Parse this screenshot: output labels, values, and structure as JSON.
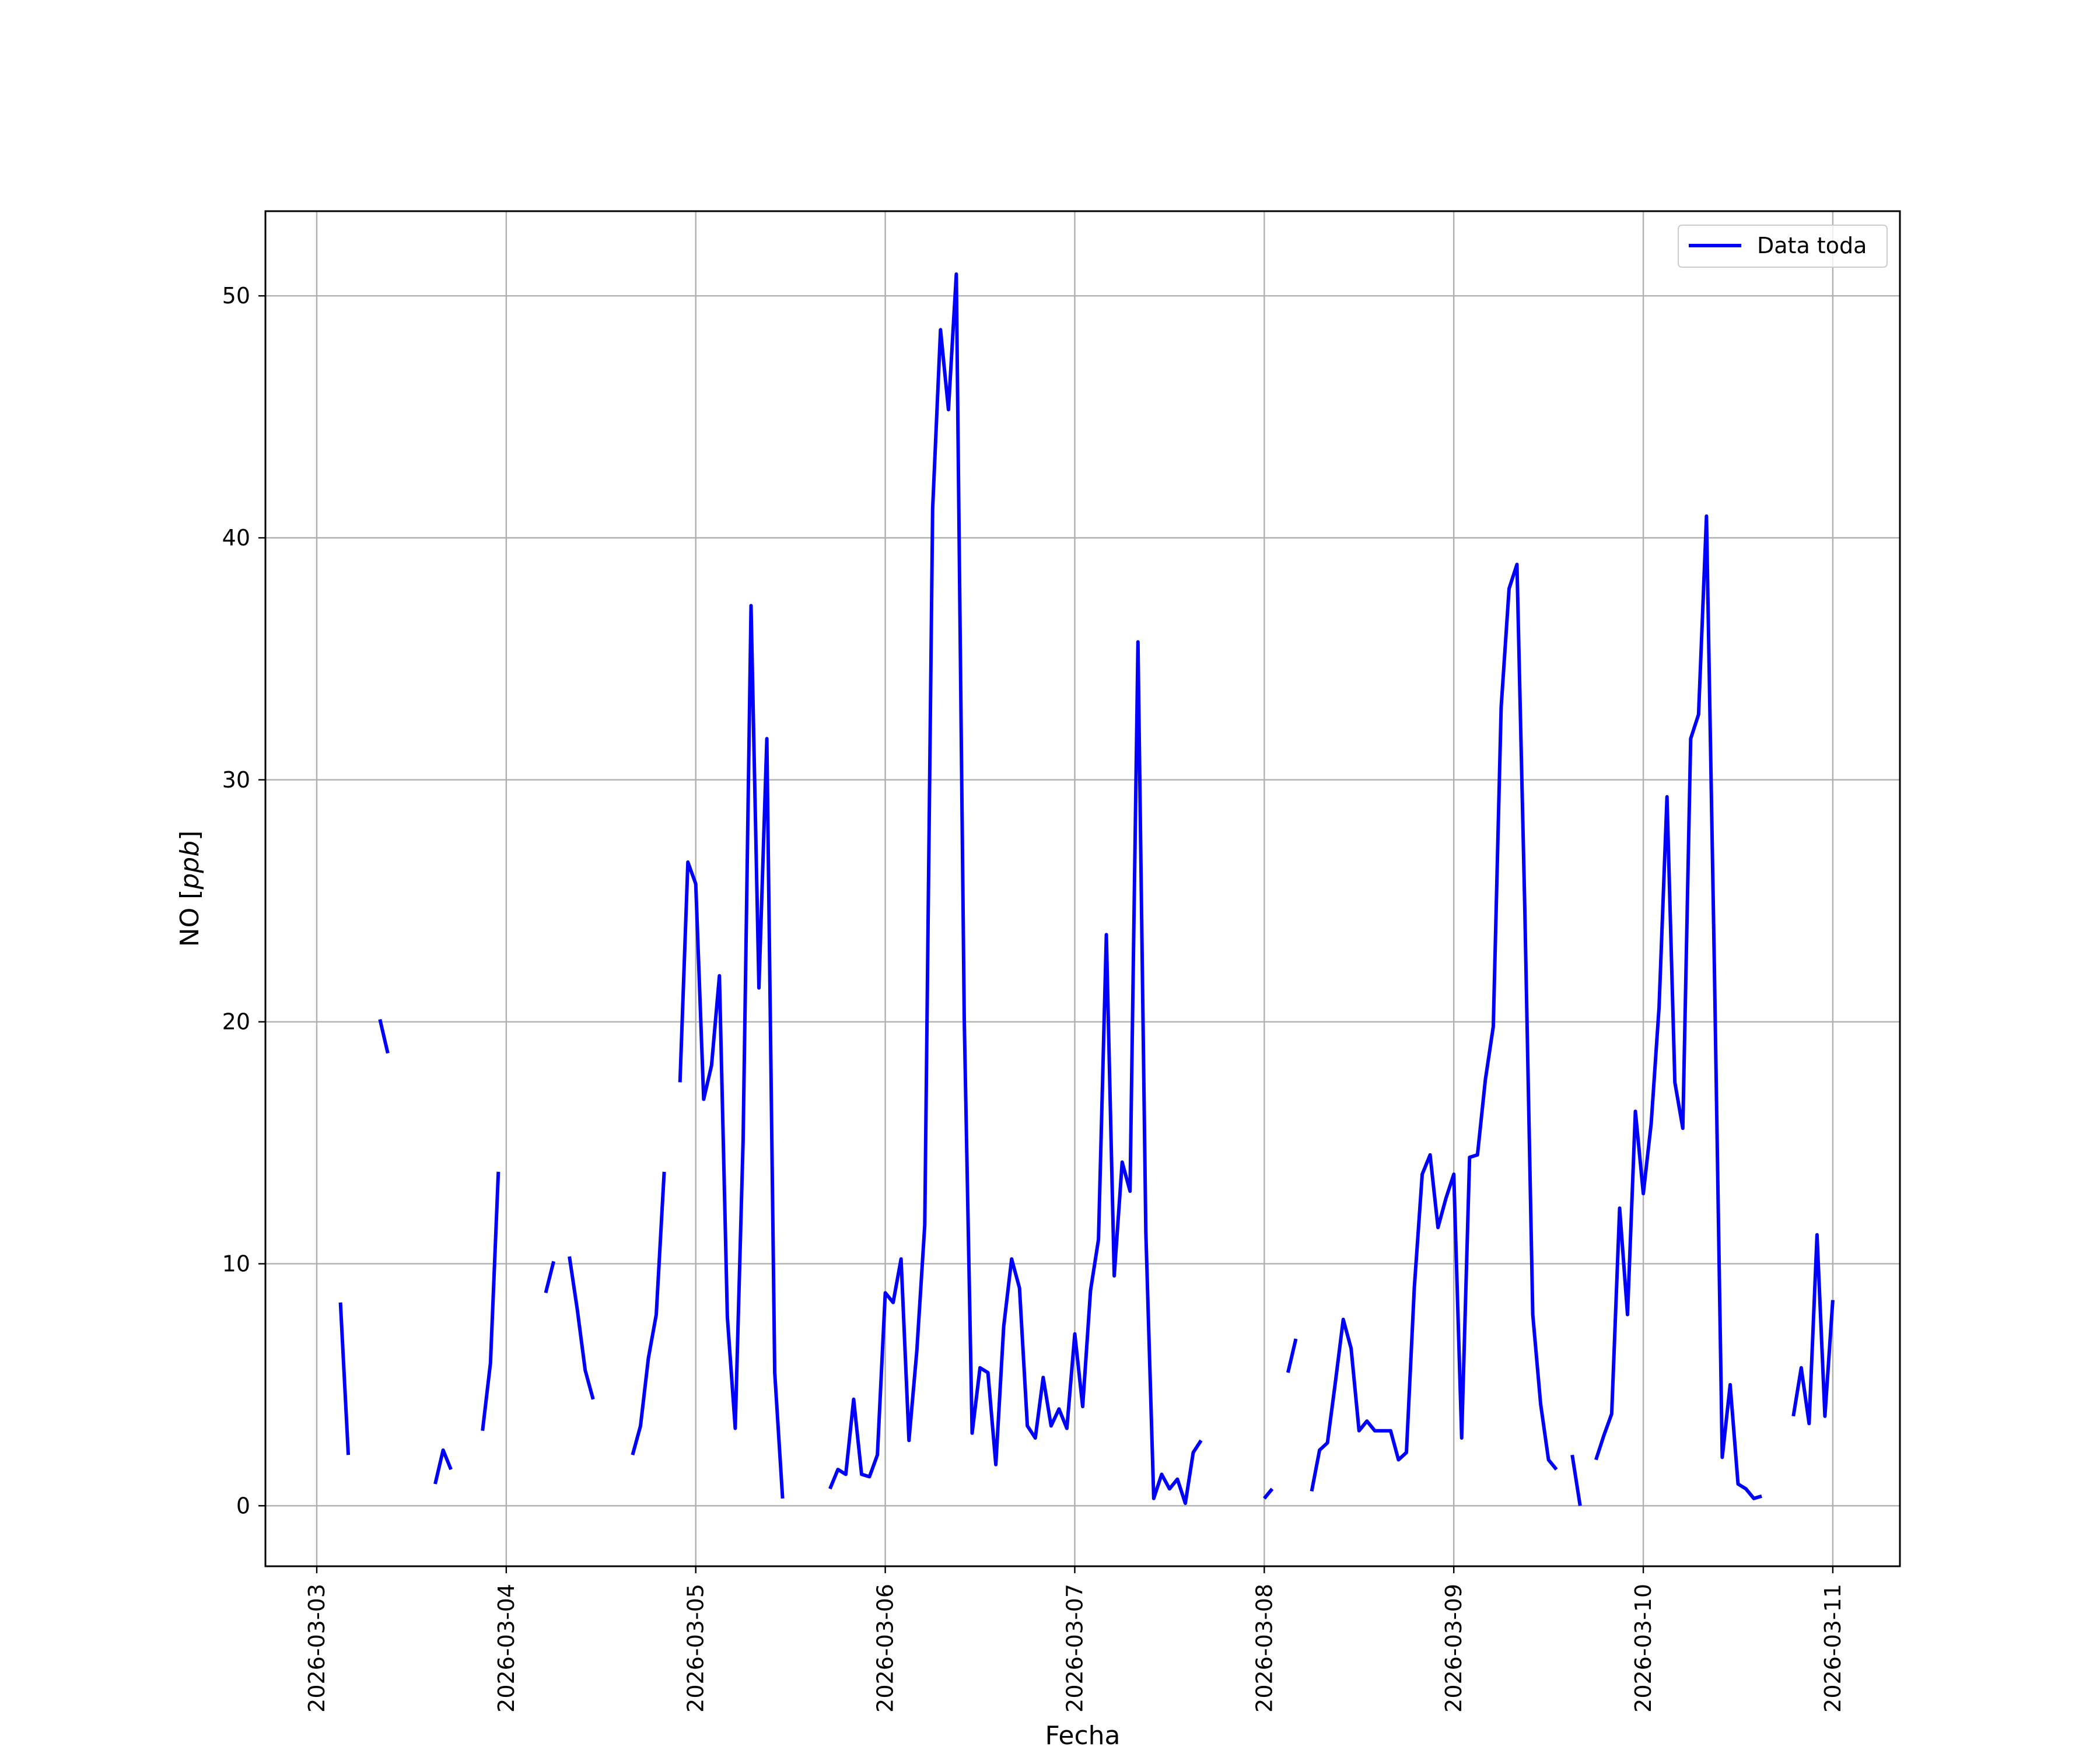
{
  "chart_data": {
    "type": "line",
    "title": "",
    "xlabel": "Fecha",
    "ylabel_text": "NO [",
    "ylabel_unit": "ppb",
    "ylabel_close": "]",
    "ylim": [
      -2.5,
      53.5
    ],
    "xlim": [
      "2026-03-02T17:30",
      "2026-03-11T08:30"
    ],
    "grid": true,
    "legend_position": "top-right",
    "yticks": [
      0,
      10,
      20,
      30,
      40,
      50
    ],
    "xticks": [
      "2026-03-03",
      "2026-03-04",
      "2026-03-05",
      "2026-03-06",
      "2026-03-07",
      "2026-03-08",
      "2026-03-09",
      "2026-03-10",
      "2026-03-11"
    ],
    "series": [
      {
        "name": "Data toda",
        "color": "#0000ff",
        "segments": [
          [
            [
              "2026-03-03T03:00",
              8.4
            ],
            [
              "2026-03-03T04:00",
              2.1
            ]
          ],
          [
            [
              "2026-03-03T08:00",
              20.1
            ],
            [
              "2026-03-03T09:00",
              18.7
            ]
          ],
          [
            [
              "2026-03-03T15:00",
              0.9
            ],
            [
              "2026-03-03T16:00",
              2.3
            ],
            [
              "2026-03-03T17:00",
              1.5
            ]
          ],
          [
            [
              "2026-03-03T21:00",
              3.1
            ],
            [
              "2026-03-03T22:00",
              5.9
            ],
            [
              "2026-03-03T23:00",
              13.8
            ]
          ],
          [
            [
              "2026-03-04T05:00",
              8.8
            ],
            [
              "2026-03-04T06:00",
              10.1
            ]
          ],
          [
            [
              "2026-03-04T08:00",
              10.3
            ],
            [
              "2026-03-04T09:00",
              8.1
            ],
            [
              "2026-03-04T10:00",
              5.6
            ],
            [
              "2026-03-04T11:00",
              4.4
            ]
          ],
          [
            [
              "2026-03-04T16:00",
              2.1
            ],
            [
              "2026-03-04T17:00",
              3.3
            ],
            [
              "2026-03-04T18:00",
              6.1
            ],
            [
              "2026-03-04T19:00",
              7.9
            ],
            [
              "2026-03-04T20:00",
              13.8
            ]
          ],
          [
            [
              "2026-03-04T22:00",
              17.5
            ],
            [
              "2026-03-04T23:00",
              26.6
            ],
            [
              "2026-03-05T00:00",
              25.7
            ],
            [
              "2026-03-05T01:00",
              16.8
            ],
            [
              "2026-03-05T02:00",
              18.2
            ],
            [
              "2026-03-05T03:00",
              21.9
            ],
            [
              "2026-03-05T04:00",
              7.8
            ],
            [
              "2026-03-05T05:00",
              3.2
            ],
            [
              "2026-03-05T06:00",
              15.1
            ],
            [
              "2026-03-05T07:00",
              37.2
            ],
            [
              "2026-03-05T08:00",
              21.4
            ],
            [
              "2026-03-05T09:00",
              31.7
            ],
            [
              "2026-03-05T10:00",
              5.5
            ],
            [
              "2026-03-05T11:00",
              0.3
            ]
          ],
          [
            [
              "2026-03-05T17:00",
              0.7
            ],
            [
              "2026-03-05T18:00",
              1.5
            ],
            [
              "2026-03-05T19:00",
              1.3
            ],
            [
              "2026-03-05T20:00",
              4.4
            ],
            [
              "2026-03-05T21:00",
              1.3
            ],
            [
              "2026-03-05T22:00",
              1.2
            ],
            [
              "2026-03-05T23:00",
              2.1
            ],
            [
              "2026-03-06T00:00",
              8.8
            ],
            [
              "2026-03-06T01:00",
              8.4
            ],
            [
              "2026-03-06T02:00",
              10.2
            ],
            [
              "2026-03-06T03:00",
              2.7
            ],
            [
              "2026-03-06T04:00",
              6.4
            ],
            [
              "2026-03-06T05:00",
              11.6
            ],
            [
              "2026-03-06T06:00",
              41.2
            ],
            [
              "2026-03-06T07:00",
              48.6
            ],
            [
              "2026-03-06T08:00",
              45.3
            ],
            [
              "2026-03-06T09:00",
              50.9
            ],
            [
              "2026-03-06T10:00",
              20.1
            ],
            [
              "2026-03-06T11:00",
              3.0
            ],
            [
              "2026-03-06T12:00",
              5.7
            ],
            [
              "2026-03-06T13:00",
              5.5
            ],
            [
              "2026-03-06T14:00",
              1.7
            ],
            [
              "2026-03-06T15:00",
              7.4
            ],
            [
              "2026-03-06T16:00",
              10.2
            ],
            [
              "2026-03-06T17:00",
              9.0
            ],
            [
              "2026-03-06T18:00",
              3.3
            ],
            [
              "2026-03-06T19:00",
              2.8
            ],
            [
              "2026-03-06T20:00",
              5.3
            ],
            [
              "2026-03-06T21:00",
              3.3
            ],
            [
              "2026-03-06T22:00",
              4.0
            ],
            [
              "2026-03-06T23:00",
              3.2
            ],
            [
              "2026-03-07T00:00",
              7.1
            ],
            [
              "2026-03-07T01:00",
              4.1
            ],
            [
              "2026-03-07T02:00",
              8.9
            ],
            [
              "2026-03-07T03:00",
              11.0
            ],
            [
              "2026-03-07T04:00",
              23.6
            ],
            [
              "2026-03-07T05:00",
              9.5
            ],
            [
              "2026-03-07T06:00",
              14.2
            ],
            [
              "2026-03-07T07:00",
              13.0
            ],
            [
              "2026-03-07T08:00",
              35.7
            ],
            [
              "2026-03-07T09:00",
              11.3
            ],
            [
              "2026-03-07T10:00",
              0.3
            ],
            [
              "2026-03-07T11:00",
              1.3
            ],
            [
              "2026-03-07T12:00",
              0.7
            ],
            [
              "2026-03-07T13:00",
              1.1
            ],
            [
              "2026-03-07T14:00",
              0.1
            ],
            [
              "2026-03-07T15:00",
              2.2
            ],
            [
              "2026-03-07T16:00",
              2.7
            ]
          ],
          [
            [
              "2026-03-08T00:00",
              0.3
            ],
            [
              "2026-03-08T01:00",
              0.7
            ]
          ],
          [
            [
              "2026-03-08T03:00",
              5.5
            ],
            [
              "2026-03-08T04:00",
              6.9
            ]
          ],
          [
            [
              "2026-03-08T06:00",
              0.6
            ],
            [
              "2026-03-08T07:00",
              2.3
            ],
            [
              "2026-03-08T08:00",
              2.6
            ],
            [
              "2026-03-08T09:00",
              5.1
            ],
            [
              "2026-03-08T10:00",
              7.7
            ],
            [
              "2026-03-08T11:00",
              6.5
            ],
            [
              "2026-03-08T12:00",
              3.1
            ],
            [
              "2026-03-08T13:00",
              3.5
            ],
            [
              "2026-03-08T14:00",
              3.1
            ],
            [
              "2026-03-08T15:00",
              3.1
            ],
            [
              "2026-03-08T16:00",
              3.1
            ],
            [
              "2026-03-08T17:00",
              1.9
            ],
            [
              "2026-03-08T18:00",
              2.2
            ],
            [
              "2026-03-08T19:00",
              9.0
            ],
            [
              "2026-03-08T20:00",
              13.7
            ],
            [
              "2026-03-08T21:00",
              14.5
            ],
            [
              "2026-03-08T22:00",
              11.5
            ],
            [
              "2026-03-08T23:00",
              12.7
            ],
            [
              "2026-03-09T00:00",
              13.7
            ],
            [
              "2026-03-09T01:00",
              2.8
            ],
            [
              "2026-03-09T02:00",
              14.4
            ],
            [
              "2026-03-09T03:00",
              14.5
            ],
            [
              "2026-03-09T04:00",
              17.6
            ],
            [
              "2026-03-09T05:00",
              19.8
            ],
            [
              "2026-03-09T06:00",
              33.0
            ],
            [
              "2026-03-09T07:00",
              37.9
            ],
            [
              "2026-03-09T08:00",
              38.9
            ],
            [
              "2026-03-09T09:00",
              24.6
            ],
            [
              "2026-03-09T10:00",
              7.9
            ],
            [
              "2026-03-09T11:00",
              4.2
            ],
            [
              "2026-03-09T12:00",
              1.9
            ],
            [
              "2026-03-09T13:00",
              1.5
            ]
          ],
          [
            [
              "2026-03-09T15:00",
              2.1
            ],
            [
              "2026-03-09T16:00",
              0.0
            ]
          ],
          [
            [
              "2026-03-09T18:00",
              1.9
            ],
            [
              "2026-03-09T19:00",
              2.9
            ],
            [
              "2026-03-09T20:00",
              3.8
            ],
            [
              "2026-03-09T21:00",
              12.3
            ],
            [
              "2026-03-09T22:00",
              7.9
            ],
            [
              "2026-03-09T23:00",
              16.3
            ],
            [
              "2026-03-10T00:00",
              12.9
            ],
            [
              "2026-03-10T01:00",
              15.8
            ],
            [
              "2026-03-10T02:00",
              20.6
            ],
            [
              "2026-03-10T03:00",
              29.3
            ],
            [
              "2026-03-10T04:00",
              17.5
            ],
            [
              "2026-03-10T05:00",
              15.6
            ],
            [
              "2026-03-10T06:00",
              31.7
            ],
            [
              "2026-03-10T07:00",
              32.7
            ],
            [
              "2026-03-10T08:00",
              40.9
            ],
            [
              "2026-03-10T09:00",
              22.3
            ],
            [
              "2026-03-10T10:00",
              2.0
            ],
            [
              "2026-03-10T11:00",
              5.0
            ],
            [
              "2026-03-10T12:00",
              0.9
            ],
            [
              "2026-03-10T13:00",
              0.7
            ],
            [
              "2026-03-10T14:00",
              0.3
            ],
            [
              "2026-03-10T15:00",
              0.4
            ]
          ],
          [
            [
              "2026-03-10T19:00",
              3.7
            ],
            [
              "2026-03-10T20:00",
              5.7
            ],
            [
              "2026-03-10T21:00",
              3.4
            ],
            [
              "2026-03-10T22:00",
              11.2
            ],
            [
              "2026-03-10T23:00",
              3.7
            ],
            [
              "2026-03-11T00:00",
              8.5
            ]
          ]
        ]
      }
    ]
  }
}
